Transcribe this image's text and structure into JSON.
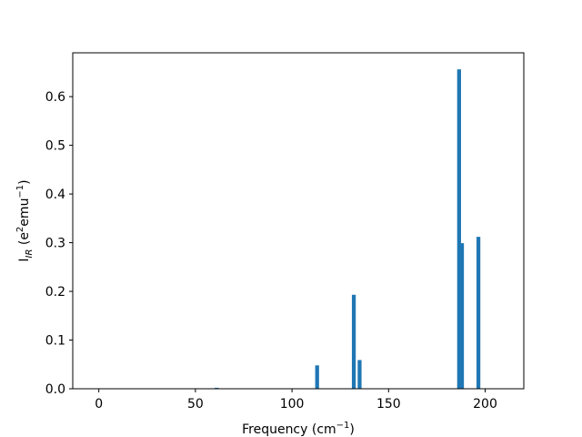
{
  "chart_data": {
    "type": "bar",
    "title": "",
    "xlabel": "Frequency (cm⁻¹)",
    "xlabel_parts": {
      "main": "Frequency (cm",
      "sup": "−1",
      "close": ")"
    },
    "ylabel": "I_IR (e²emu⁻¹)",
    "ylabel_parts": {
      "main": "I",
      "sub": "IR",
      "mid": " (e",
      "sup1": "2",
      "mid2": "emu",
      "sup2": "−1",
      "close": ")"
    },
    "xlim": [
      -13.5,
      220
    ],
    "ylim": [
      0,
      0.69
    ],
    "x_ticks": [
      0,
      50,
      100,
      150,
      200
    ],
    "y_ticks": [
      0.0,
      0.1,
      0.2,
      0.3,
      0.4,
      0.5,
      0.6
    ],
    "x_tick_labels": [
      "0",
      "50",
      "100",
      "150",
      "200"
    ],
    "y_tick_labels": [
      "0.0",
      "0.1",
      "0.2",
      "0.3",
      "0.4",
      "0.5",
      "0.6"
    ],
    "bar_width": 2,
    "grid": false,
    "color": "#1f77b4",
    "series": [
      {
        "x": [
          61,
          113,
          132,
          135,
          186.5,
          188,
          196.5
        ],
        "values": [
          0.002,
          0.048,
          0.193,
          0.059,
          0.656,
          0.299,
          0.312
        ]
      }
    ]
  }
}
